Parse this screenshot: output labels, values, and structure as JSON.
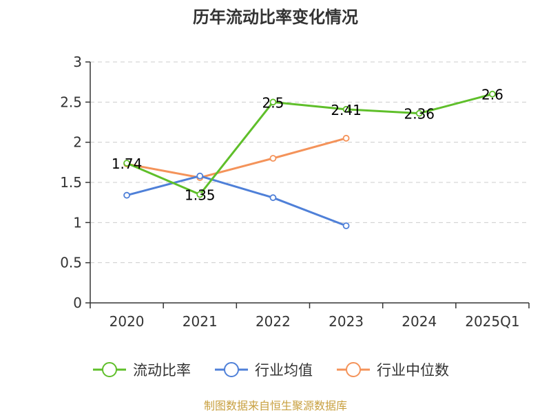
{
  "chart_data": {
    "type": "line",
    "title": "历年流动比率变化情况",
    "categories": [
      "2020",
      "2021",
      "2022",
      "2023",
      "2024",
      "2025Q1"
    ],
    "ylim": [
      0,
      3
    ],
    "yticks": [
      "0",
      "0.5",
      "1",
      "1.5",
      "2",
      "2.5",
      "3"
    ],
    "ytick_values": [
      0,
      0.5,
      1,
      1.5,
      2,
      2.5,
      3
    ],
    "grid": true,
    "legend_position": "bottom",
    "series": [
      {
        "name": "流动比率",
        "color": "#5fbf2a",
        "values": [
          1.74,
          1.35,
          2.5,
          2.41,
          2.36,
          2.6
        ],
        "labels": [
          "1.74",
          "1.35",
          "2.5",
          "2.41",
          "2.36",
          "2.6"
        ]
      },
      {
        "name": "行业均值",
        "color": "#4f80d8",
        "values": [
          1.34,
          1.58,
          1.31,
          0.96,
          null,
          null
        ]
      },
      {
        "name": "行业中位数",
        "color": "#f4935a",
        "values": [
          1.73,
          1.56,
          1.8,
          2.05,
          null,
          null
        ]
      }
    ]
  },
  "footer": {
    "source": "制图数据来自恒生聚源数据库"
  }
}
